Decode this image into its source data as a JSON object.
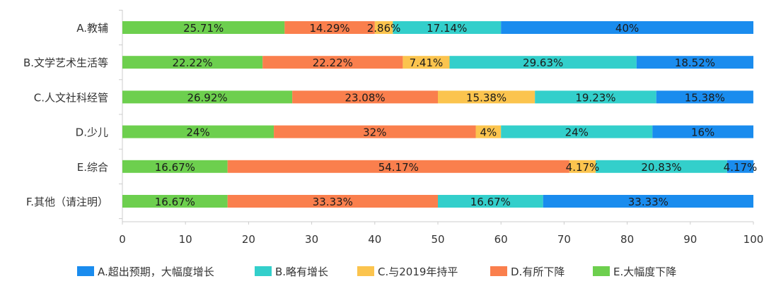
{
  "chart_data": {
    "type": "bar",
    "orientation": "horizontal",
    "stacked": true,
    "categories": [
      "A.教辅",
      "B.文学艺术生活等",
      "C.人文社科经管",
      "D.少儿",
      "E.综合",
      "F.其他（请注明）"
    ],
    "series": [
      {
        "name": "E.大幅度下降",
        "color": "#6DCF4E",
        "values": [
          25.71,
          22.22,
          26.92,
          24,
          16.67,
          16.67
        ],
        "labels": [
          "25.71%",
          "22.22%",
          "26.92%",
          "24%",
          "16.67%",
          "16.67%"
        ]
      },
      {
        "name": "D.有所下降",
        "color": "#FA7F4D",
        "values": [
          14.29,
          22.22,
          23.08,
          32,
          54.17,
          33.33
        ],
        "labels": [
          "14.29%",
          "22.22%",
          "23.08%",
          "32%",
          "54.17%",
          "33.33%"
        ]
      },
      {
        "name": "C.与2019年持平",
        "color": "#FBC44E",
        "values": [
          2.86,
          7.41,
          15.38,
          4,
          4.17,
          0
        ],
        "labels": [
          "2.86%",
          "7.41%",
          "15.38%",
          "4%",
          "4.17%",
          ""
        ]
      },
      {
        "name": "B.略有增长",
        "color": "#33CFCB",
        "values": [
          17.14,
          29.63,
          19.23,
          24,
          20.83,
          16.67
        ],
        "labels": [
          "17.14%",
          "29.63%",
          "19.23%",
          "24%",
          "20.83%",
          "16.67%"
        ]
      },
      {
        "name": "A.超出预期，大幅度增长",
        "color": "#1A8CEE",
        "values": [
          40,
          18.52,
          15.38,
          16,
          4.17,
          33.33
        ],
        "labels": [
          "40%",
          "18.52%",
          "15.38%",
          "16%",
          "4.17%",
          "33.33%"
        ]
      }
    ],
    "x_ticks": [
      "0",
      "10",
      "20",
      "30",
      "40",
      "50",
      "60",
      "70",
      "80",
      "90",
      "100"
    ],
    "xlim": [
      0,
      100
    ],
    "legend": {
      "position": "bottom",
      "order": [
        "A.超出预期，大幅度增长",
        "B.略有增长",
        "C.与2019年持平",
        "D.有所下降",
        "E.大幅度下降"
      ]
    },
    "grid": false,
    "title": "",
    "xlabel": "",
    "ylabel": ""
  }
}
